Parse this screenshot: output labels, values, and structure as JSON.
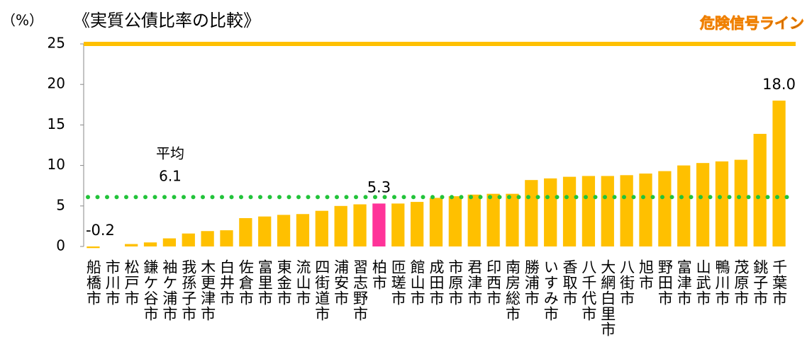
{
  "chart_data": {
    "type": "bar",
    "title": "《実質公債比率の比較》",
    "y_label": "（%）",
    "categories": [
      "船橋市",
      "市川市",
      "松戸市",
      "鎌ケ谷市",
      "袖ケ浦市",
      "我孫子市",
      "木更津市",
      "白井市",
      "佐倉市",
      "富里市",
      "東金市",
      "流山市",
      "四街道市",
      "浦安市",
      "習志野市",
      "柏市",
      "匝瑳市",
      "館山市",
      "成田市",
      "市原市",
      "君津市",
      "印西市",
      "南房総市",
      "勝浦市",
      "いすみ市",
      "香取市",
      "八千代市",
      "大網白里市",
      "八街市",
      "旭市",
      "野田市",
      "富津市",
      "山武市",
      "鴨川市",
      "茂原市",
      "銚子市",
      "千葉市"
    ],
    "values": [
      -0.2,
      0,
      0.3,
      0.5,
      1.0,
      1.6,
      1.9,
      2.0,
      3.5,
      3.7,
      3.9,
      4.0,
      4.4,
      5.0,
      5.2,
      5.3,
      5.3,
      5.5,
      6.0,
      6.2,
      6.4,
      6.5,
      6.5,
      8.2,
      8.4,
      8.6,
      8.7,
      8.7,
      8.8,
      9.0,
      9.3,
      10.0,
      10.3,
      10.5,
      10.7,
      13.9,
      18.0
    ],
    "value_labels": [
      "-0.2",
      null,
      null,
      null,
      null,
      null,
      null,
      null,
      null,
      null,
      null,
      null,
      null,
      null,
      null,
      "5.3",
      null,
      null,
      null,
      null,
      null,
      null,
      null,
      null,
      null,
      null,
      null,
      null,
      null,
      null,
      null,
      null,
      null,
      null,
      null,
      null,
      "18.0"
    ],
    "colors": [
      "#ffc000",
      "#ffc000",
      "#ffc000",
      "#ffc000",
      "#ffc000",
      "#ffc000",
      "#ffc000",
      "#ffc000",
      "#ffc000",
      "#ffc000",
      "#ffc000",
      "#ffc000",
      "#ffc000",
      "#ffc000",
      "#ffc000",
      "#ff3399",
      "#ffc000",
      "#ffc000",
      "#ffc000",
      "#ffc000",
      "#ffc000",
      "#ffc000",
      "#ffc000",
      "#ffc000",
      "#ffc000",
      "#ffc000",
      "#ffc000",
      "#ffc000",
      "#ffc000",
      "#ffc000",
      "#ffc000",
      "#ffc000",
      "#ffc000",
      "#ffc000",
      "#ffc000",
      "#ffc000",
      "#ffc000"
    ],
    "ylim": [
      0,
      25
    ],
    "yticks": [
      0,
      5,
      10,
      15,
      20,
      25
    ],
    "average": {
      "label": "平均",
      "value": 6.1,
      "color": "#22c33a"
    },
    "danger_line": {
      "label": "危険信号ライン",
      "value": 25,
      "color": "#ffc000"
    }
  }
}
